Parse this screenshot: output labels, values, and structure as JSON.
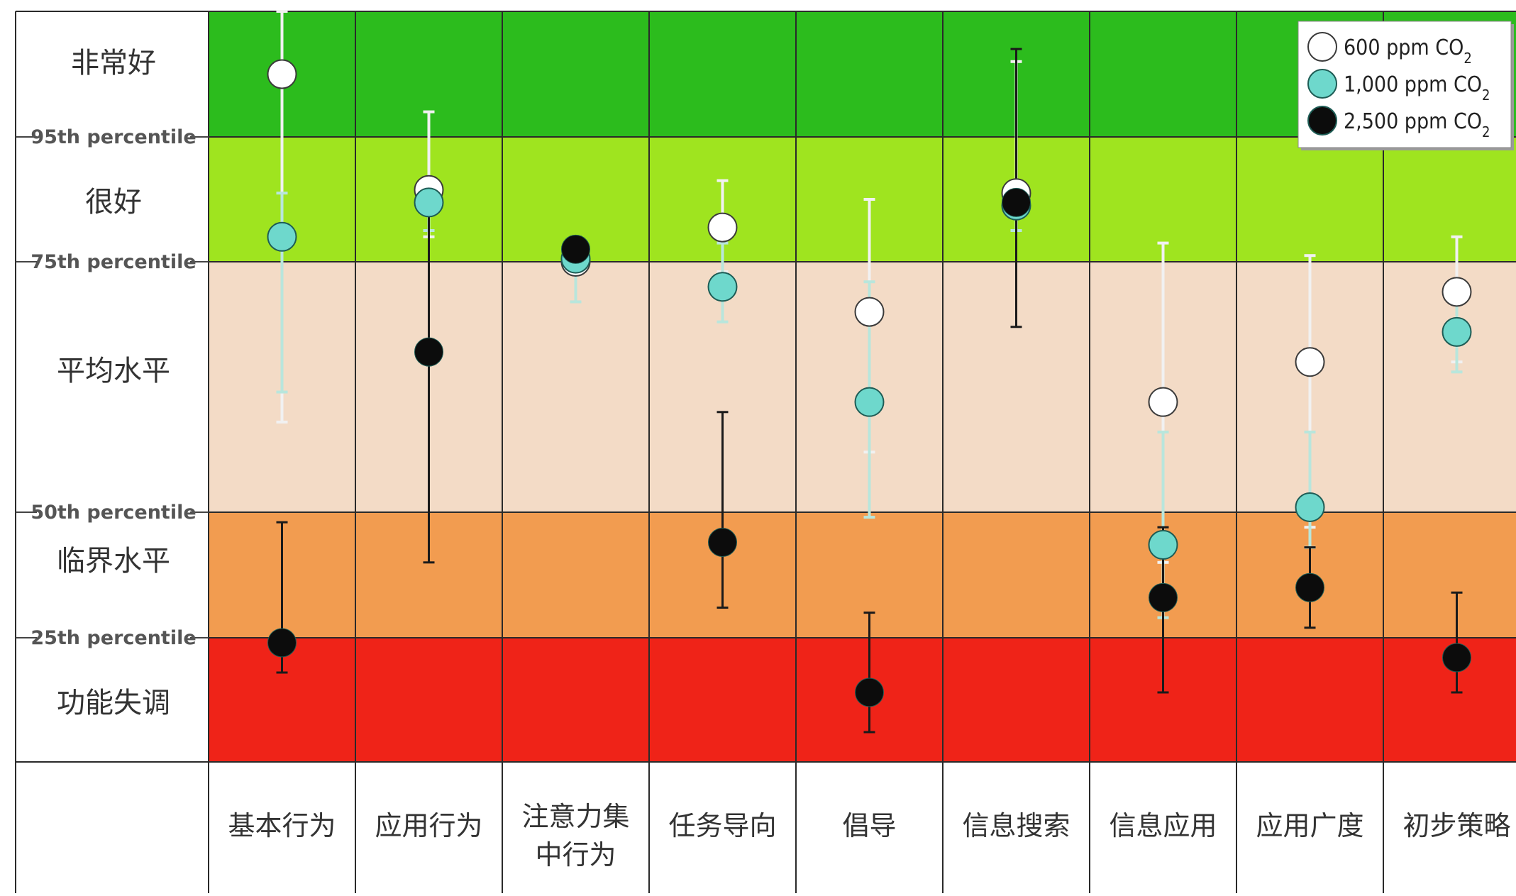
{
  "chart_data": {
    "type": "scatter",
    "title": "",
    "xlabel": "",
    "ylabel": "",
    "ylim": [
      0,
      100
    ],
    "bands": [
      {
        "label": "非常好",
        "from": 95,
        "to": 100,
        "color": "#2cbc1d"
      },
      {
        "label": "很好",
        "from": 75,
        "to": 95,
        "color": "#9fe41f"
      },
      {
        "label": "平均水平",
        "from": 50,
        "to": 75,
        "color": "#f3dbc6"
      },
      {
        "label": "临界水平",
        "from": 25,
        "to": 50,
        "color": "#f29c50"
      },
      {
        "label": "功能失调",
        "from": 0,
        "to": 25,
        "color": "#ef2318"
      }
    ],
    "percentile_lines": [
      {
        "label": "95th percentile",
        "value": 95
      },
      {
        "label": "75th percentile",
        "value": 75
      },
      {
        "label": "50th percentile",
        "value": 50
      },
      {
        "label": "25th percentile",
        "value": 25
      }
    ],
    "categories": [
      "基本行为",
      "应用行为",
      "注意力集中行为",
      "任务导向",
      "倡导",
      "信息搜索",
      "信息应用",
      "应用广度",
      "初步策略"
    ],
    "category_labels": [
      [
        "基本行为"
      ],
      [
        "应用行为"
      ],
      [
        "注意力集",
        "中行为"
      ],
      [
        "任务导向"
      ],
      [
        "倡导"
      ],
      [
        "信息搜索"
      ],
      [
        "信息应用"
      ],
      [
        "应用广度"
      ],
      [
        "初步策略"
      ]
    ],
    "series": [
      {
        "name": "600 ppm CO2",
        "color": "#ffffff",
        "error_color": "#f1f1f1",
        "values": [
          97.5,
          86.5,
          75,
          80.5,
          70,
          86,
          61,
          65,
          72
        ],
        "err_low": [
          59,
          79,
          74,
          74,
          56,
          80,
          40,
          47,
          65
        ],
        "err_high": [
          100,
          96,
          76,
          88,
          85,
          98,
          78,
          76,
          79
        ]
      },
      {
        "name": "1,000 ppm CO2",
        "color": "#6ed8cc",
        "error_color": "#b8e6dc",
        "values": [
          79,
          84.5,
          75.5,
          72.5,
          61,
          84,
          43.5,
          50.5,
          68
        ],
        "err_low": [
          62,
          80,
          71,
          69,
          49,
          80,
          29,
          43,
          64
        ],
        "err_high": [
          86,
          87,
          77,
          78,
          73,
          88,
          58,
          58,
          72
        ]
      },
      {
        "name": "2,500 ppm CO2",
        "color": "#0c0c0c",
        "error_color": "#1a1a1a",
        "values": [
          24,
          66,
          77,
          44,
          14,
          84.5,
          33,
          35,
          21
        ],
        "err_low": [
          18,
          40,
          75,
          31,
          6,
          68.5,
          14,
          27,
          14
        ],
        "err_high": [
          48,
          88,
          79,
          60,
          30,
          98.5,
          47,
          43,
          34
        ]
      }
    ],
    "legend": {
      "position": "top-right",
      "entries": [
        {
          "text": "600 ppm CO",
          "sub": "2"
        },
        {
          "text": "1,000 ppm CO",
          "sub": "2"
        },
        {
          "text": "2,500 ppm CO",
          "sub": "2"
        }
      ]
    },
    "grid": true
  }
}
